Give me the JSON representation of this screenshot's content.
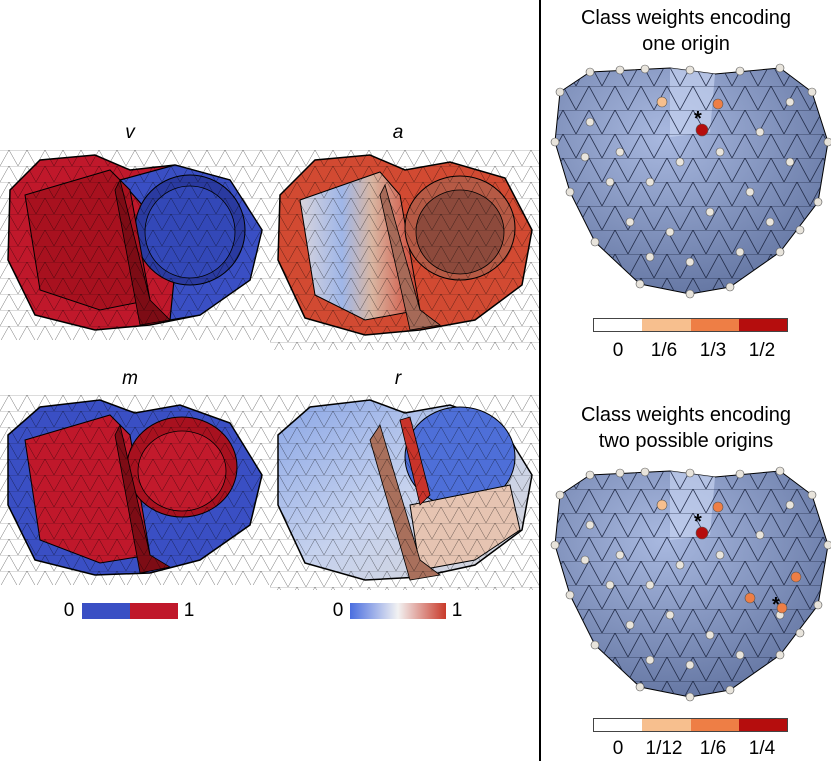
{
  "left_panel": {
    "panels": [
      {
        "label": "v"
      },
      {
        "label": "a"
      },
      {
        "label": "m"
      },
      {
        "label": "r"
      }
    ],
    "binary_colorbar": {
      "min_label": "0",
      "max_label": "1",
      "colors": [
        "#3a4fc4",
        "#c0182b"
      ]
    },
    "diverging_colorbar": {
      "min_label": "0",
      "max_label": "1",
      "colors": [
        "#4a6ee0",
        "#f2f2f2",
        "#c93a2a"
      ]
    }
  },
  "right_panel": {
    "top": {
      "title_line1": "Class weights encoding",
      "title_line2": "one origin",
      "origin_marker": "*",
      "colorbar": {
        "ticks": [
          "0",
          "1/6",
          "1/3",
          "1/2"
        ],
        "colors": [
          "#ffffff",
          "#f7bf8e",
          "#ee7e45",
          "#b50d0d"
        ]
      }
    },
    "bottom": {
      "title_line1": "Class weights encoding",
      "title_line2": "two possible origins",
      "origin_marker": "*",
      "colorbar": {
        "ticks": [
          "0",
          "1/12",
          "1/6",
          "1/4"
        ],
        "colors": [
          "#ffffff",
          "#f7bf8e",
          "#ee7e45",
          "#b50d0d"
        ]
      }
    }
  }
}
